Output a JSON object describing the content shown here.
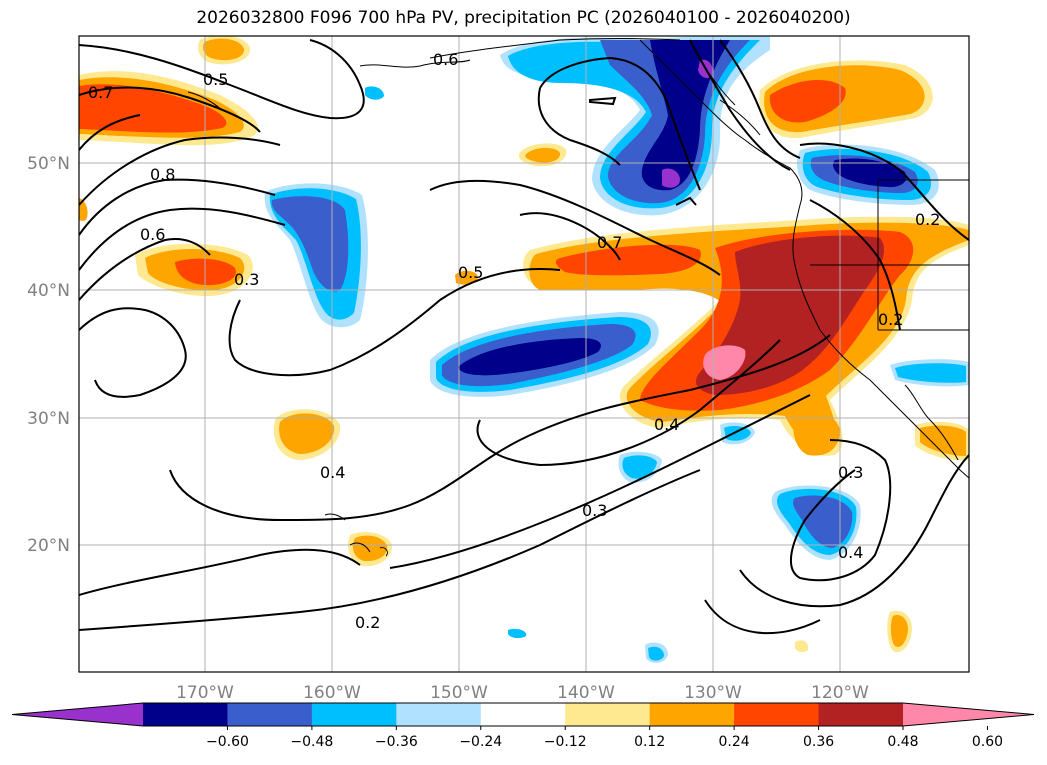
{
  "title": "2026032800 F096 700 hPa PV, precipitation PC (2026040100 - 2026040200)",
  "map": {
    "lat_labels": [
      "50°N",
      "40°N",
      "30°N",
      "20°N"
    ],
    "lon_labels": [
      "170°W",
      "160°W",
      "150°W",
      "140°W",
      "130°W",
      "120°W"
    ],
    "grid": true
  },
  "contour_labels": [
    "0.7",
    "0.5",
    "0.6",
    "0.8",
    "0.6",
    "0.3",
    "0.7",
    "0.5",
    "0.4",
    "0.4",
    "0.3",
    "0.2",
    "0.3",
    "0.4",
    "0.2",
    "0.2"
  ],
  "colorbar": {
    "ticks": [
      "−0.60",
      "−0.48",
      "−0.36",
      "−0.24",
      "−0.12",
      "0.12",
      "0.24",
      "0.36",
      "0.48",
      "0.60"
    ],
    "colors": [
      "#9932cc",
      "#00008b",
      "#3a5fcd",
      "#00bfff",
      "#b0e2ff",
      "#ffffff",
      "#ffe990",
      "#ffa500",
      "#ff4500",
      "#b22222",
      "#ff88aa"
    ],
    "extend": "both"
  }
}
